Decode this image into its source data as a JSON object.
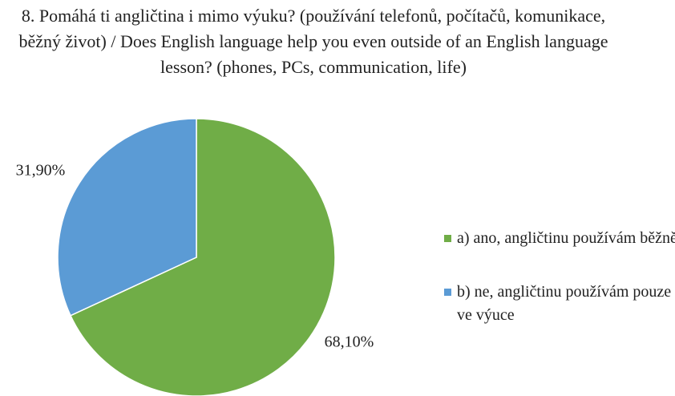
{
  "chart_data": {
    "type": "pie",
    "title": "8. Pomáhá ti angličtina i mimo výuku? (používání telefonů, počítačů, komunikace, běžný život) / Does English language help you even outside of an English language lesson? (phones, PCs, communication, life)",
    "categories": [
      "a) ano, angličtinu používám běžně",
      "b) ne, angličtinu používám pouze ve výuce"
    ],
    "values": [
      68.1,
      31.9
    ],
    "value_labels": [
      "68,10%",
      "31,90%"
    ],
    "colors": [
      "#70ad47",
      "#5b9bd5"
    ],
    "legend": "right"
  }
}
